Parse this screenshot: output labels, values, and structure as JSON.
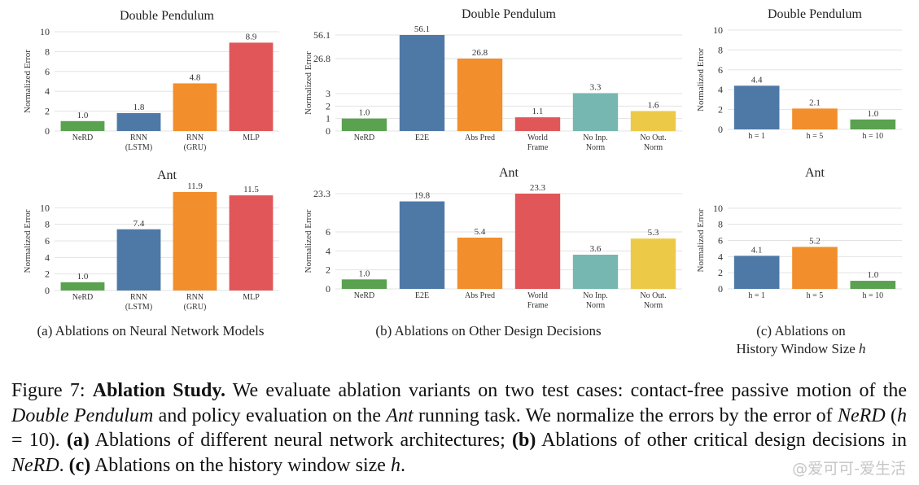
{
  "chart_data": [
    {
      "type": "bar",
      "title": "Double Pendulum",
      "ylabel": "Normalized Error",
      "categories": [
        "NeRD",
        "RNN\n(LSTM)",
        "RNN\n(GRU)",
        "MLP"
      ],
      "values": [
        1.0,
        1.8,
        4.8,
        8.9
      ],
      "value_labels": [
        "1.0",
        "1.8",
        "4.8",
        "8.9"
      ],
      "colors": [
        "#5aa150",
        "#4e79a7",
        "#f28e2b",
        "#e15759"
      ],
      "ylim": [
        0,
        10
      ],
      "yticks": [
        0,
        2,
        4,
        6,
        8,
        10
      ],
      "grid": true
    },
    {
      "type": "bar",
      "title": "Double Pendulum",
      "ylabel": "Normalized Error",
      "categories": [
        "NeRD",
        "E2E",
        "Abs Pred",
        "World\nFrame",
        "No Inp.\nNorm",
        "No Out.\nNorm"
      ],
      "values": [
        1.0,
        56.1,
        26.8,
        1.1,
        3.3,
        1.6
      ],
      "value_labels": [
        "1.0",
        "56.1",
        "26.8",
        "1.1",
        "3.3",
        "1.6"
      ],
      "colors": [
        "#5aa150",
        "#4e79a7",
        "#f28e2b",
        "#e15759",
        "#76b7b2",
        "#edc948"
      ],
      "ylim": [
        0,
        56.1
      ],
      "yticks": [
        0,
        1,
        2,
        3,
        26.8,
        56.1
      ],
      "axis_break": [
        3,
        26.8
      ],
      "grid": true
    },
    {
      "type": "bar",
      "title": "Double Pendulum",
      "ylabel": "Normalized Error",
      "categories": [
        "h = 1",
        "h = 5",
        "h = 10"
      ],
      "values": [
        4.4,
        2.1,
        1.0
      ],
      "value_labels": [
        "4.4",
        "2.1",
        "1.0"
      ],
      "colors": [
        "#4e79a7",
        "#f28e2b",
        "#5aa150"
      ],
      "ylim": [
        0,
        10
      ],
      "yticks": [
        0,
        2,
        4,
        6,
        8,
        10
      ],
      "grid": true
    },
    {
      "type": "bar",
      "title": "Ant",
      "ylabel": "Normalized Error",
      "categories": [
        "NeRD",
        "RNN\n(LSTM)",
        "RNN\n(GRU)",
        "MLP"
      ],
      "values": [
        1.0,
        7.4,
        11.9,
        11.5
      ],
      "value_labels": [
        "1.0",
        "7.4",
        "11.9",
        "11.5"
      ],
      "colors": [
        "#5aa150",
        "#4e79a7",
        "#f28e2b",
        "#e15759"
      ],
      "ylim": [
        0,
        11.9
      ],
      "yticks": [
        0,
        2,
        4,
        6,
        8,
        10
      ],
      "grid": true
    },
    {
      "type": "bar",
      "title": "Ant",
      "ylabel": "Normalized Error",
      "categories": [
        "NeRD",
        "E2E",
        "Abs Pred",
        "World\nFrame",
        "No Inp.\nNorm",
        "No Out.\nNorm"
      ],
      "values": [
        1.0,
        19.8,
        5.4,
        23.3,
        3.6,
        5.3
      ],
      "value_labels": [
        "1.0",
        "19.8",
        "5.4",
        "23.3",
        "3.6",
        "5.3"
      ],
      "colors": [
        "#5aa150",
        "#4e79a7",
        "#f28e2b",
        "#e15759",
        "#76b7b2",
        "#edc948"
      ],
      "ylim": [
        0,
        23.3
      ],
      "yticks": [
        0,
        2,
        4,
        6,
        23.3
      ],
      "axis_break": [
        6,
        23.3
      ],
      "grid": true
    },
    {
      "type": "bar",
      "title": "Ant",
      "ylabel": "Normalized Error",
      "categories": [
        "h = 1",
        "h = 5",
        "h = 10"
      ],
      "values": [
        4.1,
        5.2,
        1.0
      ],
      "value_labels": [
        "4.1",
        "5.2",
        "1.0"
      ],
      "colors": [
        "#4e79a7",
        "#f28e2b",
        "#5aa150"
      ],
      "ylim": [
        0,
        12
      ],
      "yticks": [
        0,
        2,
        4,
        6,
        8,
        10
      ],
      "grid": true
    }
  ],
  "subcaptions": {
    "a": "(a) Ablations on Neural Network Models",
    "b": "(b) Ablations on Other Design Decisions",
    "c_line1": "(c) Ablations on",
    "c_line2_prefix": "History Window Size ",
    "c_line2_var": "h"
  },
  "caption": {
    "label": "Figure 7: ",
    "bold_title": "Ablation Study.",
    "t1": " We evaluate ablation variants on two test cases: contact-free passive motion of the ",
    "i1": "Double Pendulum",
    "t2": " and policy evaluation on the ",
    "i2": "Ant",
    "t3": " running task. We normalize the errors by the error of ",
    "i3": "NeRD",
    "t4": " (",
    "i4": "h",
    "t5": " = 10). ",
    "b1": "(a)",
    "t6": " Ablations of different neural network architectures; ",
    "b2": "(b)",
    "t7": " Ablations of other critical design decisions in ",
    "i5": "NeRD",
    "t8": ". ",
    "b3": "(c)",
    "t9": " Ablations on the history window size ",
    "i6": "h",
    "t10": "."
  },
  "watermark": "@爱可可-爱生活"
}
